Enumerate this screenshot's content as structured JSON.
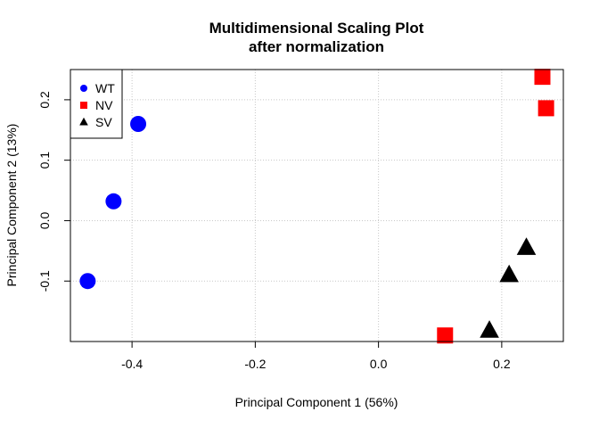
{
  "chart_data": {
    "type": "scatter",
    "title": "Multidimensional Scaling Plot",
    "subtitle": "after normalization",
    "xlabel": "Principal Component 1 (56%)",
    "ylabel": "Principal Component 2 (13%)",
    "xlim": [
      -0.5,
      0.3
    ],
    "ylim": [
      -0.2,
      0.25
    ],
    "xticks": [
      -0.4,
      -0.2,
      0.0,
      0.2
    ],
    "xtick_labels": [
      "-0.4",
      "-0.2",
      "0.0",
      "0.2"
    ],
    "yticks": [
      -0.1,
      0.0,
      0.1,
      0.2
    ],
    "ytick_labels": [
      "-0.1",
      "0.0",
      "0.1",
      "0.2"
    ],
    "grid": true,
    "legend_position": "top-left",
    "series": [
      {
        "name": "WT",
        "color": "#0000ff",
        "marker": "circle",
        "points": [
          {
            "x": -0.39,
            "y": 0.16
          },
          {
            "x": -0.43,
            "y": 0.032
          },
          {
            "x": -0.472,
            "y": -0.1
          }
        ]
      },
      {
        "name": "NV",
        "color": "#ff0000",
        "marker": "square",
        "points": [
          {
            "x": 0.266,
            "y": 0.238
          },
          {
            "x": 0.272,
            "y": 0.186
          },
          {
            "x": 0.108,
            "y": -0.19
          }
        ]
      },
      {
        "name": "SV",
        "color": "#000000",
        "marker": "triangle",
        "points": [
          {
            "x": 0.24,
            "y": -0.045
          },
          {
            "x": 0.212,
            "y": -0.09
          },
          {
            "x": 0.18,
            "y": -0.182
          }
        ]
      }
    ]
  }
}
